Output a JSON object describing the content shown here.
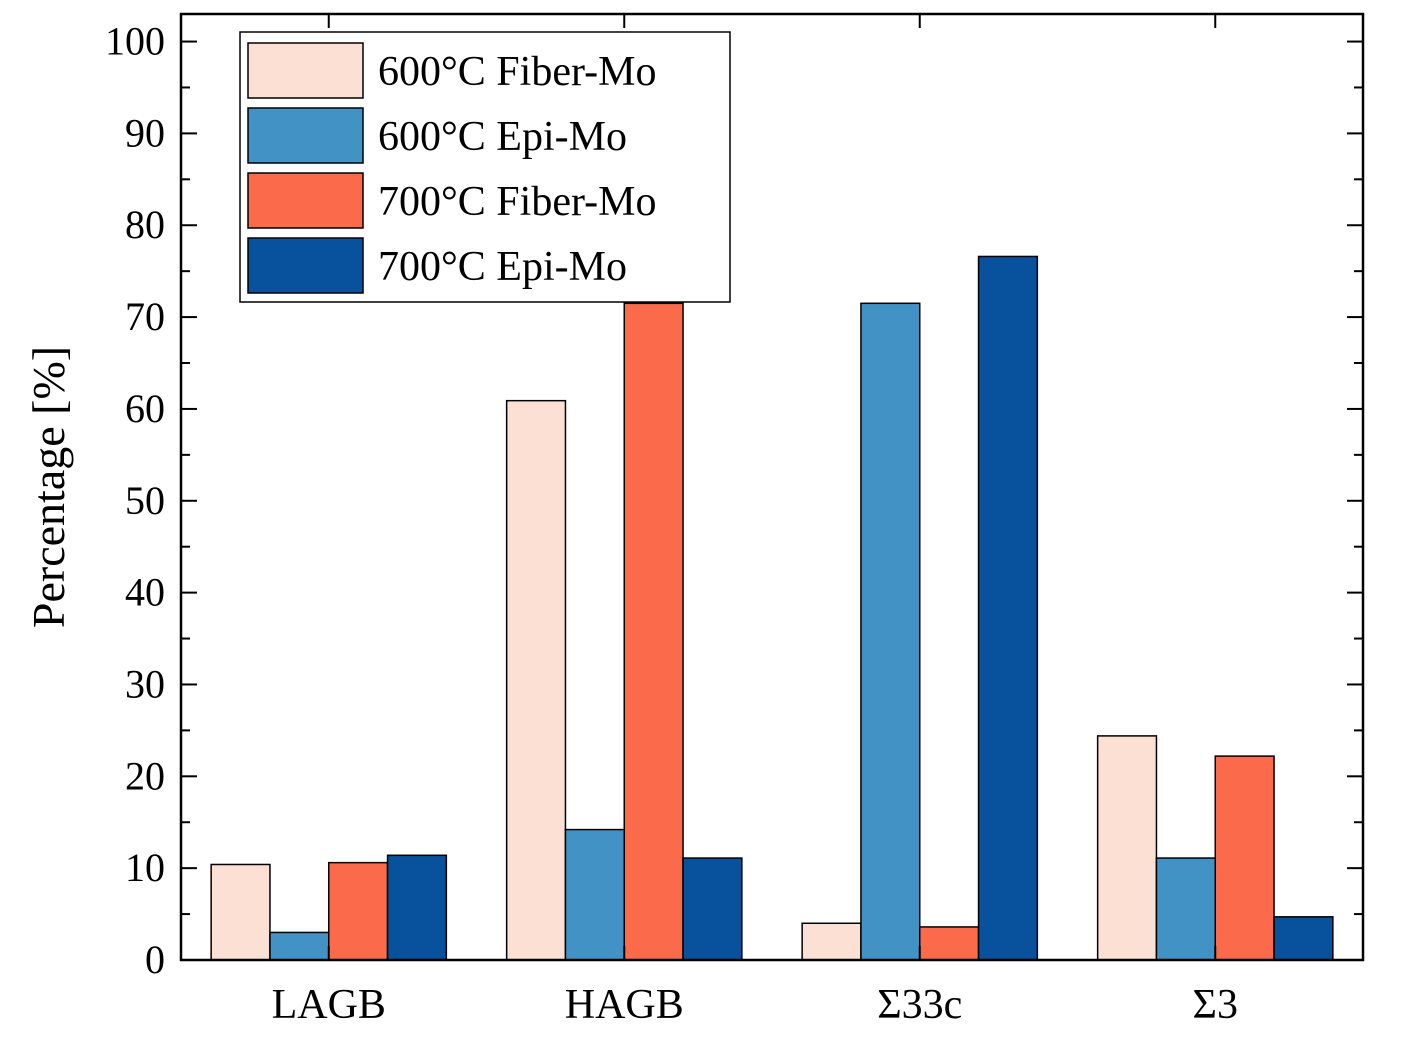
{
  "chart_data": {
    "type": "bar",
    "title": "",
    "xlabel": "",
    "ylabel": "Percentage [%]",
    "ylim": [
      0,
      103
    ],
    "yticks": [
      "0",
      "10",
      "20",
      "30",
      "40",
      "50",
      "60",
      "70",
      "80",
      "90",
      "100"
    ],
    "ytick_values": [
      0,
      10,
      20,
      30,
      40,
      50,
      60,
      70,
      80,
      90,
      100
    ],
    "grid": false,
    "legend_position": "top-left",
    "categories": [
      "LAGB",
      "HAGB",
      "Σ33c",
      "Σ3"
    ],
    "series": [
      {
        "name": "600°C Fiber-Mo",
        "color": "#fde0d4",
        "values": [
          10.4,
          60.9,
          4.0,
          24.4
        ]
      },
      {
        "name": "600°C Epi-Mo",
        "color": "#4292c6",
        "values": [
          3.0,
          14.2,
          71.5,
          11.1
        ]
      },
      {
        "name": "700°C Fiber-Mo",
        "color": "#fb6b4b",
        "values": [
          10.6,
          71.5,
          3.6,
          22.2
        ]
      },
      {
        "name": "700°C Epi-Mo",
        "color": "#08519c",
        "values": [
          11.4,
          11.1,
          76.6,
          4.7
        ]
      }
    ]
  }
}
